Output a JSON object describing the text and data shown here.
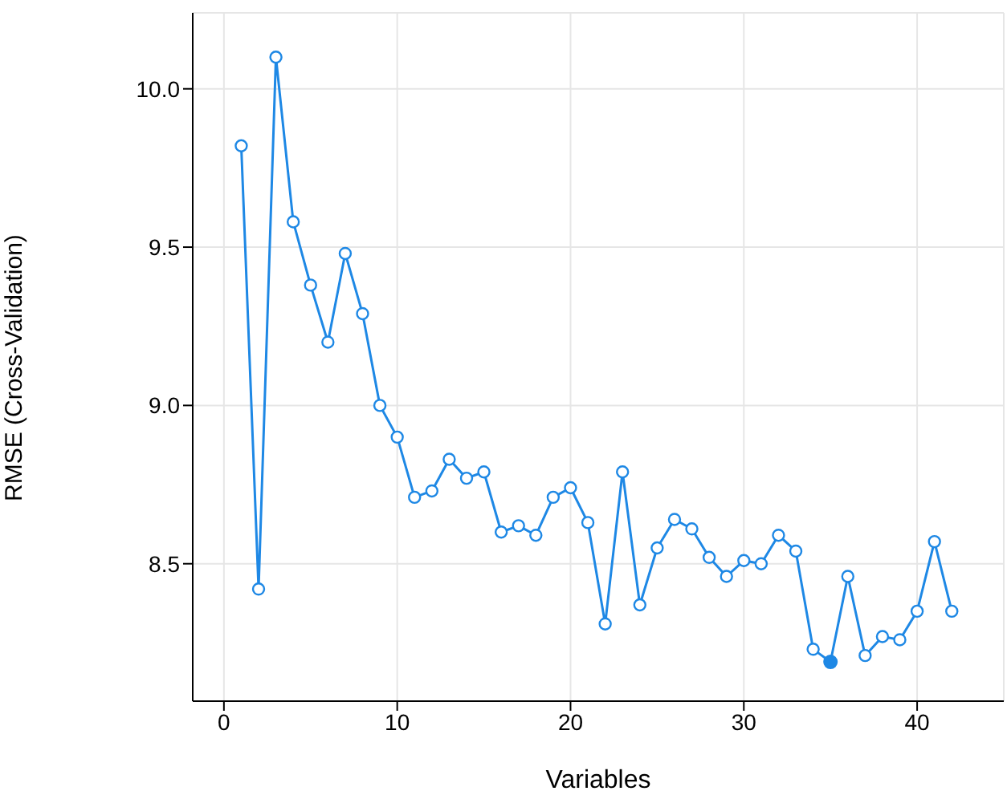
{
  "chart_data": {
    "type": "line",
    "xlabel": "Variables",
    "ylabel": "RMSE (Cross-Validation)",
    "marker": "circle",
    "grid": true,
    "xlim": [
      -1.8,
      45
    ],
    "ylim": [
      8.066,
      10.24
    ],
    "xticks": [
      0,
      10,
      20,
      30,
      40
    ],
    "yticks": [
      8.5,
      {
        "value": 9,
        "label": "9.0"
      },
      9.5,
      {
        "value": 10,
        "label": "10.0"
      }
    ],
    "series": [
      {
        "color": "#1e88e5",
        "x": [
          1,
          2,
          3,
          4,
          5,
          6,
          7,
          8,
          9,
          10,
          11,
          12,
          13,
          14,
          15,
          16,
          17,
          18,
          19,
          20,
          21,
          22,
          23,
          24,
          25,
          26,
          27,
          28,
          29,
          30,
          31,
          32,
          33,
          34,
          35,
          36,
          37,
          38,
          39,
          40,
          41,
          42
        ],
        "values": [
          9.82,
          8.42,
          10.1,
          9.58,
          9.38,
          9.2,
          9.48,
          9.29,
          9.0,
          8.9,
          8.71,
          8.73,
          8.83,
          8.77,
          8.79,
          8.6,
          8.62,
          8.59,
          8.71,
          8.74,
          8.63,
          8.31,
          8.79,
          8.37,
          8.55,
          8.64,
          8.61,
          8.52,
          8.46,
          8.51,
          8.5,
          8.59,
          8.54,
          8.23,
          8.19,
          8.46,
          8.21,
          8.27,
          8.26,
          8.35,
          8.57,
          8.35
        ]
      },
      {
        "type": "scatter",
        "color": "#1e88e5",
        "x": [
          35
        ],
        "values": [
          8.19
        ]
      }
    ]
  }
}
